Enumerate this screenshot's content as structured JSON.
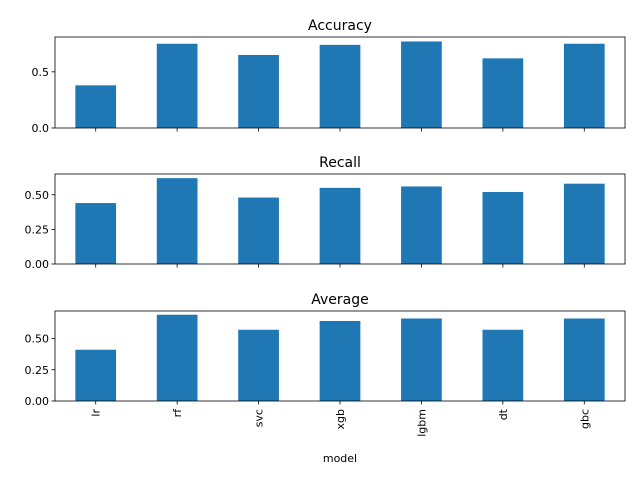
{
  "chart_data": {
    "type": "bar",
    "xlabel": "model",
    "categories": [
      "lr",
      "rf",
      "svc",
      "xgb",
      "lgbm",
      "dt",
      "gbc"
    ],
    "bar_color": "#1f77b4",
    "panels": [
      {
        "title": "Accuracy",
        "values": [
          0.38,
          0.75,
          0.65,
          0.74,
          0.77,
          0.62,
          0.75
        ],
        "ylim": [
          0,
          0.81
        ],
        "yticks": [
          0.0,
          0.5
        ],
        "ytick_labels": [
          "0.0",
          "0.5"
        ]
      },
      {
        "title": "Recall",
        "values": [
          0.44,
          0.62,
          0.48,
          0.55,
          0.56,
          0.52,
          0.58
        ],
        "ylim": [
          0,
          0.65
        ],
        "yticks": [
          0.0,
          0.25,
          0.5
        ],
        "ytick_labels": [
          "0.00",
          "0.25",
          "0.50"
        ]
      },
      {
        "title": "Average",
        "values": [
          0.41,
          0.69,
          0.57,
          0.64,
          0.66,
          0.57,
          0.66
        ],
        "ylim": [
          0,
          0.72
        ],
        "yticks": [
          0.0,
          0.25,
          0.5
        ],
        "ytick_labels": [
          "0.00",
          "0.25",
          "0.50"
        ]
      }
    ]
  }
}
